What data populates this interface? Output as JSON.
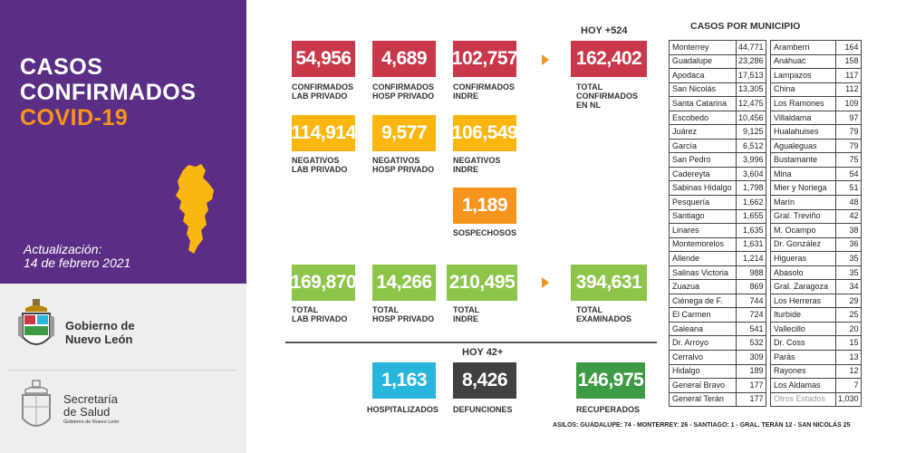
{
  "header": {
    "title_line1": "CASOS",
    "title_line2": "CONFIRMADOS",
    "title_line3": "COVID-19",
    "update_label": "Actualización:",
    "update_date": "14 de febrero 2021"
  },
  "logos": {
    "gobierno_line1": "Gobierno de",
    "gobierno_line2": "Nuevo León",
    "salud_line1": "Secretaría",
    "salud_line2": "de Salud",
    "salud_line3": "Gobierno de Nuevo León"
  },
  "confirmados": {
    "lab_privado": {
      "value": "54,956",
      "label1": "CONFIRMADOS",
      "label2": "LAB PRIVADO"
    },
    "hosp_privado": {
      "value": "4,689",
      "label1": "CONFIRMADOS",
      "label2": "HOSP PRIVADO"
    },
    "indre": {
      "value": "102,757",
      "label1": "CONFIRMADOS",
      "label2": "INDRE"
    },
    "hoy": "HOY +524",
    "total": {
      "value": "162,402",
      "label1": "TOTAL",
      "label2": "CONFIRMADOS",
      "label3": "EN NL"
    }
  },
  "negativos": {
    "lab_privado": {
      "value": "114,914",
      "label1": "NEGATIVOS",
      "label2": "LAB PRIVADO"
    },
    "hosp_privado": {
      "value": "9,577",
      "label1": "NEGATIVOS",
      "label2": "HOSP PRIVADO"
    },
    "indre": {
      "value": "106,549",
      "label1": "NEGATIVOS",
      "label2": "INDRE"
    }
  },
  "sospechosos": {
    "value": "1,189",
    "label": "SOSPECHOSOS"
  },
  "examinados": {
    "lab_privado": {
      "value": "169,870",
      "label1": "TOTAL",
      "label2": "LAB PRIVADO"
    },
    "hosp_privado": {
      "value": "14,266",
      "label1": "TOTAL",
      "label2": "HOSP PRIVADO"
    },
    "indre": {
      "value": "210,495",
      "label1": "TOTAL",
      "label2": "INDRE"
    },
    "total": {
      "value": "394,631",
      "label1": "TOTAL",
      "label2": "EXAMINADOS"
    }
  },
  "hoy2": "HOY 42+",
  "hospitalizados": {
    "value": "1,163",
    "label": "HOSPITALIZADOS"
  },
  "defunciones": {
    "value": "8,426",
    "label": "DEFUNCIONES"
  },
  "recuperados": {
    "value": "146,975",
    "label": "RECUPERADOS"
  },
  "municipios": {
    "title": "CASOS POR MUNICIPIO",
    "left": [
      [
        "Monterrey",
        "44,771"
      ],
      [
        "Guadalupe",
        "23,286"
      ],
      [
        "Apodaca",
        "17,513"
      ],
      [
        "San Nicolás",
        "13,305"
      ],
      [
        "Santa Catarina",
        "12,475"
      ],
      [
        "Escobedo",
        "10,456"
      ],
      [
        "Juárez",
        "9,125"
      ],
      [
        "García",
        "6,512"
      ],
      [
        "San Pedro",
        "3,996"
      ],
      [
        "Cadereyta",
        "3,604"
      ],
      [
        "Sabinas Hidalgo",
        "1,798"
      ],
      [
        "Pesquería",
        "1,662"
      ],
      [
        "Santiago",
        "1,655"
      ],
      [
        "Linares",
        "1,635"
      ],
      [
        "Montemorelos",
        "1,631"
      ],
      [
        "Allende",
        "1,214"
      ],
      [
        "Salinas Victoria",
        "988"
      ],
      [
        "Zuazua",
        "869"
      ],
      [
        "Ciénega de F.",
        "744"
      ],
      [
        "El Carmen",
        "724"
      ],
      [
        "Galeana",
        "541"
      ],
      [
        "Dr. Arroyo",
        "532"
      ],
      [
        "Cerralvo",
        "309"
      ],
      [
        "Hidalgo",
        "189"
      ],
      [
        "General Bravo",
        "177"
      ],
      [
        "General Terán",
        "177"
      ]
    ],
    "right": [
      [
        "Aramberri",
        "164"
      ],
      [
        "Anáhuac",
        "158"
      ],
      [
        "Lampazos",
        "117"
      ],
      [
        "China",
        "112"
      ],
      [
        "Los Ramones",
        "109"
      ],
      [
        "Villaldama",
        "97"
      ],
      [
        "Hualahuises",
        "79"
      ],
      [
        "Agualeguas",
        "79"
      ],
      [
        "Bustamante",
        "75"
      ],
      [
        "Mina",
        "54"
      ],
      [
        "Mier y Noriega",
        "51"
      ],
      [
        "Marín",
        "48"
      ],
      [
        "Gral. Treviño",
        "42"
      ],
      [
        "M. Ocampo",
        "38"
      ],
      [
        "Dr. González",
        "36"
      ],
      [
        "Higueras",
        "35"
      ],
      [
        "Abasolo",
        "35"
      ],
      [
        "Gral. Zaragoza",
        "34"
      ],
      [
        "Los Herreras",
        "29"
      ],
      [
        "Iturbide",
        "25"
      ],
      [
        "Vallecillo",
        "20"
      ],
      [
        "Dr. Coss",
        "15"
      ],
      [
        "Parás",
        "13"
      ],
      [
        "Rayones",
        "12"
      ],
      [
        "Los Aldamas",
        "7"
      ],
      [
        "Otros Estados",
        "1,030"
      ]
    ]
  },
  "asilos": "ASILOS: GUADALUPE: 74 - MONTERREY: 26 - SANTIAGO: 1 - GRAL. TERÁN 12 - SAN NICOLÁS 25",
  "colors": {
    "purple": "#5b2e86",
    "orange": "#f7941d",
    "red": "#c9384a",
    "yellow": "#fbb70f",
    "green": "#8dc54a",
    "blue": "#29b6dc",
    "dark": "#414141",
    "dark_green": "#3d9b45"
  }
}
